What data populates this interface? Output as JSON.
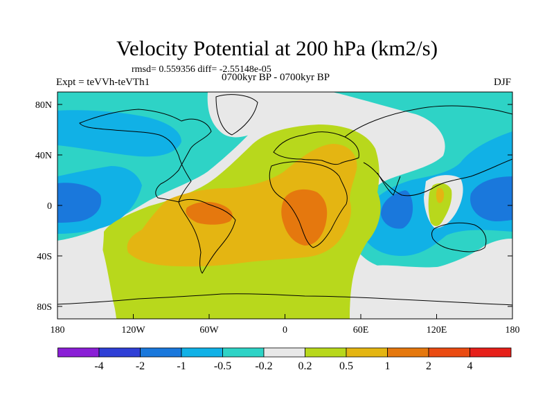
{
  "title": "Velocity Potential at 200 hPa (km2/s)",
  "stats_line": "rmsd= 0.559356 diff= -2.55148e-05",
  "experiment": "Expt = teVVh-teVTh1",
  "period": "0700kyr BP - 0700kyr BP",
  "season": "DJF",
  "axes": {
    "lat_ticks": [
      "80N",
      "40N",
      "0",
      "40S",
      "80S"
    ],
    "lon_ticks": [
      "180",
      "120W",
      "60W",
      "0",
      "60E",
      "120E",
      "180"
    ]
  },
  "colorbar": {
    "labels": [
      "-4",
      "-2",
      "-1",
      "-0.5",
      "-0.2",
      "0.2",
      "0.5",
      "1",
      "2",
      "4"
    ],
    "colors": [
      "#8a1fd6",
      "#2f3fd6",
      "#1a78dc",
      "#11b1e6",
      "#2ed3c6",
      "#e8e8e8",
      "#b8d81c",
      "#e4b512",
      "#e5780e",
      "#ea4b12",
      "#e6201a"
    ]
  },
  "field_colors": {
    "neg_strong": "#1a78dc",
    "neg_mid": "#11b1e6",
    "neg_weak": "#2ed3c6",
    "neutral": "#e8e8e8",
    "pos_weak": "#b8d81c",
    "pos_mid": "#e4b512",
    "pos_strong": "#e5780e"
  }
}
